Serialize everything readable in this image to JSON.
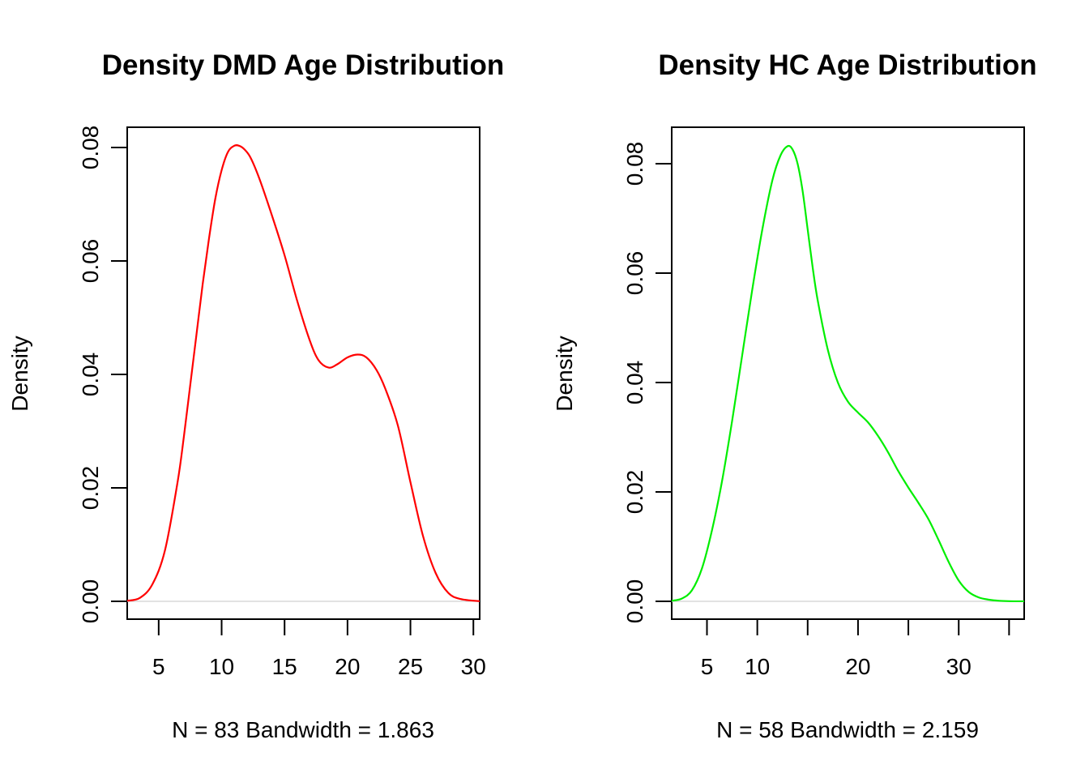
{
  "chart_data": [
    {
      "type": "line",
      "title": "Density DMD Age Distribution",
      "xlabel": "N = 83   Bandwidth = 1.863",
      "ylabel": "Density",
      "color": "#ff0000",
      "xlim": [
        2.5,
        30.5
      ],
      "ylim": [
        0,
        0.08
      ],
      "xticks": [
        5,
        10,
        15,
        20,
        25,
        30
      ],
      "xtick_labels": [
        "5",
        "10",
        "15",
        "20",
        "25",
        "30"
      ],
      "yticks": [
        0,
        0.02,
        0.04,
        0.06,
        0.08
      ],
      "ytick_labels": [
        "0.00",
        "0.02",
        "0.04",
        "0.06",
        "0.08"
      ],
      "series": [
        {
          "x": [
            2.5,
            3.5,
            4.5,
            5.5,
            6.5,
            7.0,
            7.5,
            8.0,
            8.5,
            9.0,
            9.5,
            10.0,
            10.5,
            11.0,
            11.4,
            11.8,
            12.3,
            13.0,
            14.0,
            15.0,
            16.0,
            17.0,
            17.7,
            18.5,
            19.2,
            20.0,
            20.8,
            21.5,
            22.3,
            23.0,
            24.0,
            25.0,
            26.0,
            27.0,
            28.0,
            29.0,
            30.5
          ],
          "y": [
            0.0001,
            0.0006,
            0.003,
            0.009,
            0.021,
            0.029,
            0.038,
            0.047,
            0.056,
            0.064,
            0.071,
            0.076,
            0.0792,
            0.0803,
            0.0803,
            0.0797,
            0.0782,
            0.0745,
            0.068,
            0.061,
            0.053,
            0.046,
            0.0425,
            0.0412,
            0.0418,
            0.043,
            0.0435,
            0.043,
            0.0408,
            0.0375,
            0.031,
            0.021,
            0.0115,
            0.005,
            0.0015,
            0.0004,
            3e-05
          ]
        }
      ]
    },
    {
      "type": "line",
      "title": "Density HC Age Distribution",
      "xlabel": "N = 58   Bandwidth = 2.159",
      "ylabel": "Density",
      "color": "#00ee00",
      "xlim": [
        1.5,
        36.5
      ],
      "ylim": [
        0,
        0.083
      ],
      "xticks": [
        5,
        10,
        15,
        20,
        25,
        30,
        35
      ],
      "xtick_labels": [
        "5",
        "10",
        "",
        "20",
        "",
        "30",
        ""
      ],
      "yticks": [
        0,
        0.02,
        0.04,
        0.06,
        0.08
      ],
      "ytick_labels": [
        "0.00",
        "0.02",
        "0.04",
        "0.06",
        "0.08"
      ],
      "series": [
        {
          "x": [
            1.5,
            2.5,
            3.5,
            4.5,
            5.5,
            6.5,
            7.5,
            8.5,
            9.5,
            10.5,
            11.5,
            12.3,
            13.0,
            13.5,
            14.0,
            14.5,
            15.0,
            15.5,
            16.0,
            17.0,
            18.0,
            19.0,
            20.0,
            21.0,
            22.0,
            23.0,
            24.0,
            25.0,
            26.0,
            27.0,
            28.0,
            29.0,
            30.0,
            31.0,
            32.0,
            33.0,
            34.0,
            35.0,
            36.5
          ],
          "y": [
            0.0001,
            0.0005,
            0.002,
            0.006,
            0.013,
            0.022,
            0.033,
            0.045,
            0.057,
            0.068,
            0.077,
            0.0815,
            0.0832,
            0.0826,
            0.08,
            0.075,
            0.068,
            0.061,
            0.055,
            0.046,
            0.04,
            0.0365,
            0.0345,
            0.0327,
            0.0302,
            0.0272,
            0.0238,
            0.0208,
            0.018,
            0.015,
            0.0112,
            0.0072,
            0.0038,
            0.0017,
            0.0007,
            0.0003,
            0.0001,
            3e-05,
            1e-05
          ]
        }
      ]
    }
  ]
}
